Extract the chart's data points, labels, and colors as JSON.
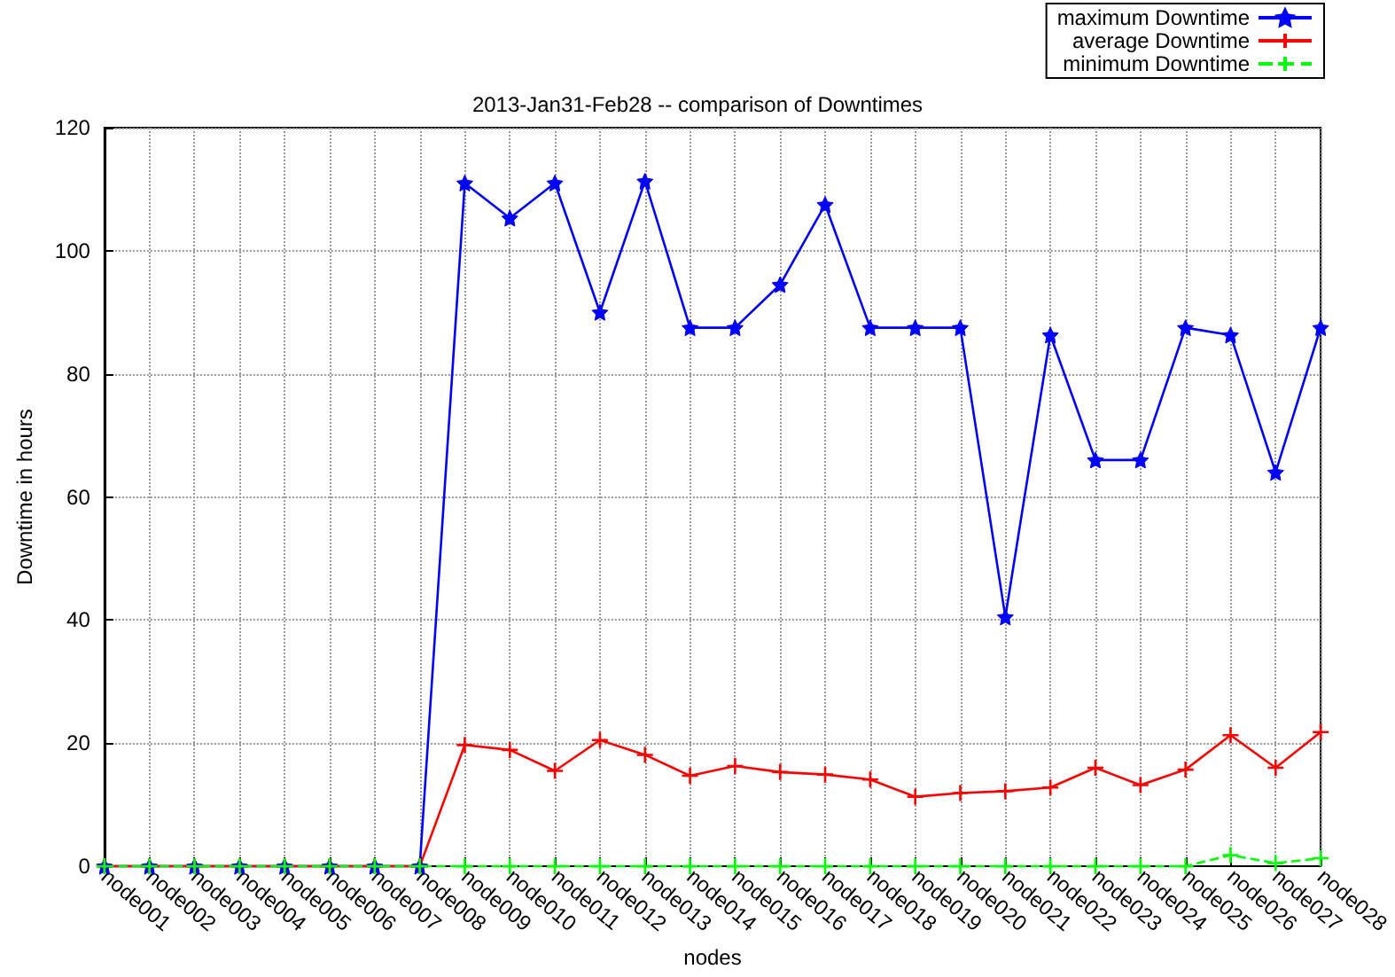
{
  "chart_data": {
    "type": "line",
    "title": "2013-Jan31-Feb28 -- comparison of Downtimes",
    "xlabel": "nodes",
    "ylabel": "Downtime in hours",
    "categories": [
      "node001",
      "node002",
      "node003",
      "node004",
      "node005",
      "node006",
      "node007",
      "node008",
      "node009",
      "node010",
      "node011",
      "node012",
      "node013",
      "node014",
      "node015",
      "node016",
      "node017",
      "node018",
      "node019",
      "node020",
      "node021",
      "node022",
      "node023",
      "node024",
      "node025",
      "node026",
      "node027",
      "node028"
    ],
    "series": [
      {
        "name": "maximum Downtime",
        "color": "#0000ff",
        "marker": "star",
        "line_style": "solid",
        "values": [
          0,
          0,
          0,
          0,
          0,
          0,
          0,
          0,
          111,
          105.3,
          111,
          90,
          111.3,
          87.5,
          87.5,
          94.5,
          107.5,
          87.5,
          87.5,
          87.5,
          40.5,
          86.3,
          66,
          66,
          87.5,
          86.3,
          64,
          87.5
        ]
      },
      {
        "name": "average Downtime",
        "color": "#ff0000",
        "marker": "cross",
        "line_style": "solid",
        "values": [
          0,
          0,
          0,
          0,
          0,
          0,
          0,
          0,
          19.7,
          18.9,
          15.5,
          20.5,
          18.1,
          14.7,
          16.3,
          15.3,
          14.9,
          14.1,
          11.3,
          11.9,
          12.2,
          12.8,
          16,
          13.2,
          15.7,
          21.3,
          16,
          21.8
        ]
      },
      {
        "name": "minimum Downtime",
        "color": "#00ff00",
        "marker": "cross",
        "line_style": "dashed",
        "values": [
          0,
          0,
          0,
          0,
          0,
          0,
          0,
          0,
          0,
          0,
          0,
          0,
          0,
          0,
          0,
          0,
          0,
          0,
          0,
          0,
          0,
          0,
          0,
          0,
          0,
          1.8,
          0.5,
          1.3
        ]
      }
    ],
    "ylim": [
      0,
      120
    ],
    "yticks": [
      0,
      20,
      40,
      60,
      80,
      100,
      120
    ],
    "grid": true,
    "legend": "top right"
  }
}
